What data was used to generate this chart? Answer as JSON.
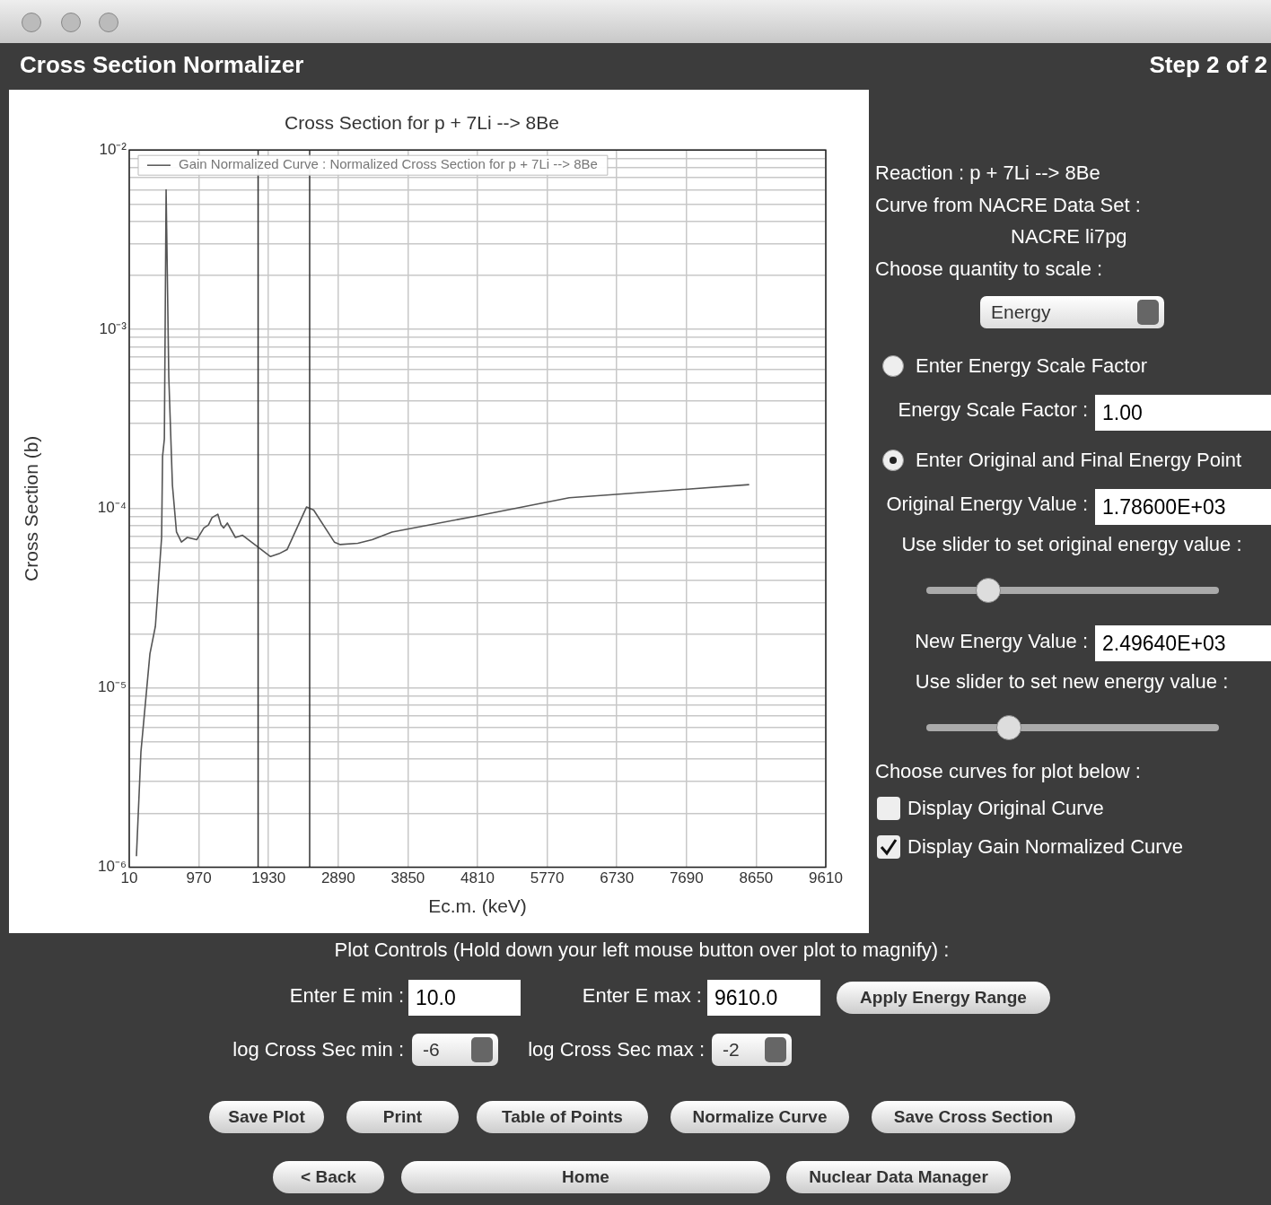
{
  "chart_data": [
    {
      "type": "line",
      "title": "Cross Section for p + 7Li --> 8Be",
      "xlabel": "Ec.m. (keV)",
      "ylabel": "Cross Section (b)",
      "series": [
        {
          "name": "Gain Normalized Curve : Normalized Cross Section for p + 7Li --> 8Be",
          "color": "#555555",
          "x": [
            109,
            171,
            295,
            370,
            456,
            469,
            494,
            518,
            555,
            605,
            661,
            729,
            810,
            940,
            1039,
            1101,
            1151,
            1231,
            1275,
            1312,
            1362,
            1473,
            1572,
            1783,
            1957,
            2075,
            2185,
            2453,
            2552,
            2837,
            2918,
            3160,
            3358,
            3631,
            4804,
            6074,
            6718,
            8554
          ],
          "values": [
            1.15e-06,
            4.4e-06,
            1.55e-05,
            2.2e-05,
            6.9e-05,
            0.000195,
            0.000245,
            0.006,
            0.00054,
            0.000135,
            7.4e-05,
            6.5e-05,
            6.9e-05,
            6.7e-05,
            7.8e-05,
            8.1e-05,
            8.9e-05,
            9.3e-05,
            8.1e-05,
            7.8e-05,
            8.3e-05,
            6.9e-05,
            7.1e-05,
            6.1e-05,
            5.4e-05,
            5.6e-05,
            5.9e-05,
            0.000102,
            9.8e-05,
            6.5e-05,
            6.3e-05,
            6.4e-05,
            6.7e-05,
            7.4e-05,
            9.1e-05,
            0.000115,
            0.00012,
            0.000136
          ]
        }
      ],
      "xlim": [
        10,
        9610
      ],
      "xticks": [
        10,
        970,
        1930,
        2890,
        3850,
        4810,
        5770,
        6730,
        7690,
        8650,
        9610
      ],
      "ylim": [
        1e-06,
        0.01
      ],
      "log": true,
      "yticks": [
        {
          "value": 1e-06,
          "label": "10⁻⁶"
        },
        {
          "value": 2e-06,
          "label": null
        },
        {
          "value": 3e-06,
          "label": null
        },
        {
          "value": 4e-06,
          "label": null
        },
        {
          "value": 5e-06,
          "label": null
        },
        {
          "value": 6e-06,
          "label": null
        },
        {
          "value": 7e-06,
          "label": null
        },
        {
          "value": 8e-06,
          "label": null
        },
        {
          "value": 9e-06,
          "label": null
        },
        {
          "value": 1e-05,
          "label": "10⁻⁵"
        },
        {
          "value": 2e-05,
          "label": null
        },
        {
          "value": 3e-05,
          "label": null
        },
        {
          "value": 4e-05,
          "label": null
        },
        {
          "value": 5e-05,
          "label": null
        },
        {
          "value": 6e-05,
          "label": null
        },
        {
          "value": 7e-05,
          "label": null
        },
        {
          "value": 8e-05,
          "label": null
        },
        {
          "value": 9e-05,
          "label": null
        },
        {
          "value": 0.0001,
          "label": "10⁻⁴"
        },
        {
          "value": 0.0002,
          "label": null
        },
        {
          "value": 0.0003,
          "label": null
        },
        {
          "value": 0.0004,
          "label": null
        },
        {
          "value": 0.0005,
          "label": null
        },
        {
          "value": 0.0006,
          "label": null
        },
        {
          "value": 0.0007,
          "label": null
        },
        {
          "value": 0.0008,
          "label": null
        },
        {
          "value": 0.0009,
          "label": null
        },
        {
          "value": 0.001,
          "label": "10⁻³"
        },
        {
          "value": 0.002,
          "label": null
        },
        {
          "value": 0.003,
          "label": null
        },
        {
          "value": 0.004,
          "label": null
        },
        {
          "value": 0.005,
          "label": null
        },
        {
          "value": 0.006,
          "label": null
        },
        {
          "value": 0.007,
          "label": null
        },
        {
          "value": 0.008,
          "label": null
        },
        {
          "value": 0.009,
          "label": null
        },
        {
          "value": 0.01,
          "label": "10⁻²"
        }
      ],
      "ref_lines": [
        {
          "axis": "x",
          "value": 1786,
          "color": "#333333"
        },
        {
          "axis": "x",
          "value": 2496.4,
          "color": "#333333"
        }
      ],
      "grid": true,
      "legend": "top left",
      "marker": "none",
      "line_style": "solid"
    },
    {
      "type": "other",
      "annotations": [
        "Cross Section Normalizer",
        "Step  2  of  2",
        "Reaction : p + 7Li --> 8Be",
        "Curve from NACRE Data Set :",
        "NACRE li7pg",
        "Choose quantity to scale :",
        "Energy",
        "Enter Energy Scale Factor",
        "Energy Scale Factor :",
        "1.00",
        "Enter Original and Final Energy Point",
        "Original Energy Value :",
        "1.78600E+03",
        "Use slider to set original energy value :",
        "New Energy Value :",
        "2.49640E+03",
        "Use slider to set new energy value :",
        "Choose curves for plot below :",
        "Display Original Curve",
        "Display Gain Normalized Curve",
        "Plot Controls (Hold down your left mouse button over plot to magnify) :",
        "Enter E min :",
        "10.0",
        "Enter E max :",
        "9610.0",
        "Apply Energy Range",
        "log Cross Sec min :",
        "-6",
        "log Cross Sec max :",
        "-2",
        "Save Plot",
        "Print",
        "Table of Points",
        "Normalize Curve",
        "Save Cross Section",
        "< Back",
        "Home",
        "Nuclear Data Manager"
      ]
    }
  ]
}
